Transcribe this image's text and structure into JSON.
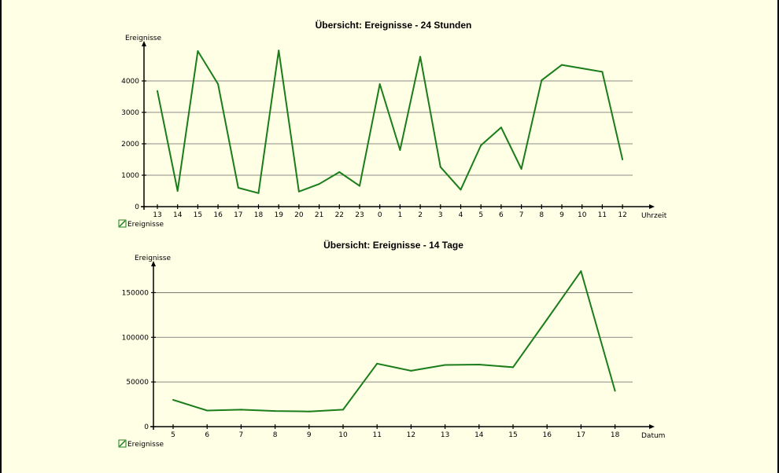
{
  "charts": [
    {
      "id": "hours",
      "title": "Übersicht: Ereignisse - 24 Stunden",
      "ylabel": "Ereignisse",
      "xlabel": "Uhrzeit",
      "legend": "Ereignisse"
    },
    {
      "id": "days",
      "title": "Übersicht: Ereignisse - 14 Tage",
      "ylabel": "Ereignisse",
      "xlabel": "Datum",
      "legend": "Ereignisse"
    }
  ],
  "chart_data": [
    {
      "type": "line",
      "title": "Übersicht: Ereignisse - 24 Stunden",
      "xlabel": "Uhrzeit",
      "ylabel": "Ereignisse",
      "categories": [
        "13",
        "14",
        "15",
        "16",
        "17",
        "18",
        "19",
        "20",
        "21",
        "22",
        "23",
        "0",
        "1",
        "2",
        "3",
        "4",
        "5",
        "6",
        "7",
        "8",
        "9",
        "10",
        "11",
        "12"
      ],
      "series": [
        {
          "name": "Ereignisse",
          "values": [
            3680,
            500,
            4950,
            3900,
            600,
            430,
            4970,
            480,
            720,
            1100,
            660,
            3900,
            1800,
            4770,
            1260,
            540,
            1950,
            2520,
            1200,
            4020,
            4510,
            4400,
            4290,
            1500
          ]
        }
      ],
      "ylim": [
        0,
        5000
      ],
      "yticks": [
        0,
        1000,
        2000,
        3000,
        4000
      ],
      "grid": true,
      "legend_position": "bottom-left",
      "color": "#1a7d1a"
    },
    {
      "type": "line",
      "title": "Übersicht: Ereignisse - 14 Tage",
      "xlabel": "Datum",
      "ylabel": "Ereignisse",
      "categories": [
        "5",
        "6",
        "7",
        "8",
        "9",
        "10",
        "11",
        "12",
        "13",
        "14",
        "15",
        "16",
        "17",
        "18"
      ],
      "series": [
        {
          "name": "Ereignisse",
          "values": [
            30000,
            18000,
            19000,
            17500,
            17000,
            19000,
            70500,
            62500,
            69000,
            69500,
            66500,
            120000,
            174000,
            40000
          ]
        }
      ],
      "ylim": [
        0,
        175000
      ],
      "yticks": [
        0,
        50000,
        100000,
        150000
      ],
      "grid": true,
      "legend_position": "bottom-left",
      "color": "#1a7d1a"
    }
  ]
}
